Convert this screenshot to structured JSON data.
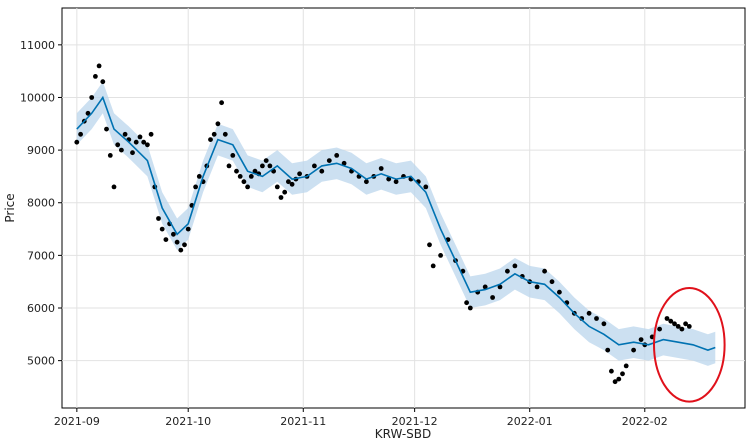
{
  "chart_data": {
    "type": "scatter",
    "xlabel": "KRW-SBD",
    "ylabel": "Price",
    "x_range": [
      "2021-08-28",
      "2022-02-28"
    ],
    "ylim": [
      4100,
      11700
    ],
    "x_ticks": [
      {
        "label": "2021-09",
        "date": "2021-09-01"
      },
      {
        "label": "2021-10",
        "date": "2021-10-01"
      },
      {
        "label": "2021-11",
        "date": "2021-11-01"
      },
      {
        "label": "2021-12",
        "date": "2021-12-01"
      },
      {
        "label": "2022-01",
        "date": "2022-01-01"
      },
      {
        "label": "2022-02",
        "date": "2022-02-01"
      }
    ],
    "y_ticks": [
      {
        "label": "5000",
        "value": 5000
      },
      {
        "label": "6000",
        "value": 6000
      },
      {
        "label": "7000",
        "value": 7000
      },
      {
        "label": "8000",
        "value": 8000
      },
      {
        "label": "9000",
        "value": 9000
      },
      {
        "label": "10000",
        "value": 10000
      },
      {
        "label": "11000",
        "value": 11000
      }
    ],
    "grid": true,
    "colors": {
      "observed": "#000000",
      "forecast": "#0072B2",
      "uncertainty": "#BBD6EC",
      "highlight_circle": "#E0111B"
    },
    "series": [
      {
        "role": "observed",
        "marker": "dot",
        "points": [
          [
            "2021-09-01",
            9150
          ],
          [
            "2021-09-02",
            9300
          ],
          [
            "2021-09-03",
            9550
          ],
          [
            "2021-09-04",
            9700
          ],
          [
            "2021-09-05",
            10000
          ],
          [
            "2021-09-06",
            10400
          ],
          [
            "2021-09-07",
            10600
          ],
          [
            "2021-09-08",
            10300
          ],
          [
            "2021-09-09",
            9400
          ],
          [
            "2021-09-10",
            8900
          ],
          [
            "2021-09-11",
            8300
          ],
          [
            "2021-09-12",
            9100
          ],
          [
            "2021-09-13",
            9000
          ],
          [
            "2021-09-14",
            9300
          ],
          [
            "2021-09-15",
            9200
          ],
          [
            "2021-09-16",
            8950
          ],
          [
            "2021-09-17",
            9150
          ],
          [
            "2021-09-18",
            9250
          ],
          [
            "2021-09-19",
            9150
          ],
          [
            "2021-09-20",
            9100
          ],
          [
            "2021-09-21",
            9300
          ],
          [
            "2021-09-22",
            8300
          ],
          [
            "2021-09-23",
            7700
          ],
          [
            "2021-09-24",
            7500
          ],
          [
            "2021-09-25",
            7300
          ],
          [
            "2021-09-26",
            7600
          ],
          [
            "2021-09-27",
            7400
          ],
          [
            "2021-09-28",
            7250
          ],
          [
            "2021-09-29",
            7100
          ],
          [
            "2021-09-30",
            7200
          ],
          [
            "2021-10-01",
            7500
          ],
          [
            "2021-10-02",
            7950
          ],
          [
            "2021-10-03",
            8300
          ],
          [
            "2021-10-04",
            8500
          ],
          [
            "2021-10-05",
            8400
          ],
          [
            "2021-10-06",
            8700
          ],
          [
            "2021-10-07",
            9200
          ],
          [
            "2021-10-08",
            9300
          ],
          [
            "2021-10-09",
            9500
          ],
          [
            "2021-10-10",
            9900
          ],
          [
            "2021-10-11",
            9300
          ],
          [
            "2021-10-12",
            8700
          ],
          [
            "2021-10-13",
            8900
          ],
          [
            "2021-10-14",
            8600
          ],
          [
            "2021-10-15",
            8500
          ],
          [
            "2021-10-16",
            8400
          ],
          [
            "2021-10-17",
            8300
          ],
          [
            "2021-10-18",
            8500
          ],
          [
            "2021-10-19",
            8600
          ],
          [
            "2021-10-20",
            8550
          ],
          [
            "2021-10-21",
            8700
          ],
          [
            "2021-10-22",
            8800
          ],
          [
            "2021-10-23",
            8700
          ],
          [
            "2021-10-24",
            8600
          ],
          [
            "2021-10-25",
            8300
          ],
          [
            "2021-10-26",
            8100
          ],
          [
            "2021-10-27",
            8200
          ],
          [
            "2021-10-28",
            8400
          ],
          [
            "2021-10-29",
            8350
          ],
          [
            "2021-10-30",
            8450
          ],
          [
            "2021-10-31",
            8550
          ],
          [
            "2021-11-02",
            8500
          ],
          [
            "2021-11-04",
            8700
          ],
          [
            "2021-11-06",
            8600
          ],
          [
            "2021-11-08",
            8800
          ],
          [
            "2021-11-10",
            8900
          ],
          [
            "2021-11-12",
            8750
          ],
          [
            "2021-11-14",
            8600
          ],
          [
            "2021-11-16",
            8500
          ],
          [
            "2021-11-18",
            8400
          ],
          [
            "2021-11-20",
            8500
          ],
          [
            "2021-11-22",
            8650
          ],
          [
            "2021-11-24",
            8450
          ],
          [
            "2021-11-26",
            8400
          ],
          [
            "2021-11-28",
            8500
          ],
          [
            "2021-11-30",
            8450
          ],
          [
            "2021-12-02",
            8400
          ],
          [
            "2021-12-04",
            8300
          ],
          [
            "2021-12-05",
            7200
          ],
          [
            "2021-12-06",
            6800
          ],
          [
            "2021-12-08",
            7000
          ],
          [
            "2021-12-10",
            7300
          ],
          [
            "2021-12-12",
            6900
          ],
          [
            "2021-12-14",
            6700
          ],
          [
            "2021-12-15",
            6100
          ],
          [
            "2021-12-16",
            6000
          ],
          [
            "2021-12-18",
            6300
          ],
          [
            "2021-12-20",
            6400
          ],
          [
            "2021-12-22",
            6200
          ],
          [
            "2021-12-24",
            6400
          ],
          [
            "2021-12-26",
            6700
          ],
          [
            "2021-12-28",
            6800
          ],
          [
            "2021-12-30",
            6600
          ],
          [
            "2022-01-01",
            6500
          ],
          [
            "2022-01-03",
            6400
          ],
          [
            "2022-01-05",
            6700
          ],
          [
            "2022-01-07",
            6500
          ],
          [
            "2022-01-09",
            6300
          ],
          [
            "2022-01-11",
            6100
          ],
          [
            "2022-01-13",
            5900
          ],
          [
            "2022-01-15",
            5800
          ],
          [
            "2022-01-17",
            5900
          ],
          [
            "2022-01-19",
            5800
          ],
          [
            "2022-01-21",
            5700
          ],
          [
            "2022-01-22",
            5200
          ],
          [
            "2022-01-23",
            4800
          ],
          [
            "2022-01-24",
            4600
          ],
          [
            "2022-01-25",
            4650
          ],
          [
            "2022-01-26",
            4750
          ],
          [
            "2022-01-27",
            4900
          ],
          [
            "2022-01-29",
            5200
          ],
          [
            "2022-01-31",
            5400
          ],
          [
            "2022-02-01",
            5300
          ],
          [
            "2022-02-03",
            5450
          ],
          [
            "2022-02-05",
            5600
          ],
          [
            "2022-02-07",
            5800
          ],
          [
            "2022-02-08",
            5750
          ],
          [
            "2022-02-09",
            5700
          ],
          [
            "2022-02-10",
            5650
          ],
          [
            "2022-02-11",
            5600
          ],
          [
            "2022-02-12",
            5700
          ],
          [
            "2022-02-13",
            5650
          ]
        ]
      },
      {
        "role": "forecast",
        "band_width": 600,
        "points": [
          [
            "2021-09-01",
            9400
          ],
          [
            "2021-09-05",
            9700
          ],
          [
            "2021-09-08",
            10000
          ],
          [
            "2021-09-11",
            9400
          ],
          [
            "2021-09-15",
            9150
          ],
          [
            "2021-09-20",
            8800
          ],
          [
            "2021-09-24",
            7900
          ],
          [
            "2021-09-28",
            7400
          ],
          [
            "2021-10-01",
            7600
          ],
          [
            "2021-10-05",
            8500
          ],
          [
            "2021-10-09",
            9200
          ],
          [
            "2021-10-13",
            9100
          ],
          [
            "2021-10-17",
            8600
          ],
          [
            "2021-10-21",
            8500
          ],
          [
            "2021-10-25",
            8700
          ],
          [
            "2021-10-29",
            8450
          ],
          [
            "2021-11-02",
            8500
          ],
          [
            "2021-11-06",
            8700
          ],
          [
            "2021-11-10",
            8750
          ],
          [
            "2021-11-14",
            8650
          ],
          [
            "2021-11-18",
            8450
          ],
          [
            "2021-11-22",
            8550
          ],
          [
            "2021-11-26",
            8450
          ],
          [
            "2021-11-30",
            8500
          ],
          [
            "2021-12-04",
            8200
          ],
          [
            "2021-12-08",
            7500
          ],
          [
            "2021-12-12",
            6900
          ],
          [
            "2021-12-16",
            6300
          ],
          [
            "2021-12-20",
            6350
          ],
          [
            "2021-12-24",
            6450
          ],
          [
            "2021-12-28",
            6650
          ],
          [
            "2022-01-01",
            6500
          ],
          [
            "2022-01-05",
            6450
          ],
          [
            "2022-01-09",
            6200
          ],
          [
            "2022-01-13",
            5900
          ],
          [
            "2022-01-17",
            5650
          ],
          [
            "2022-01-21",
            5500
          ],
          [
            "2022-01-25",
            5300
          ],
          [
            "2022-01-29",
            5350
          ],
          [
            "2022-02-02",
            5300
          ],
          [
            "2022-02-06",
            5400
          ],
          [
            "2022-02-10",
            5350
          ],
          [
            "2022-02-14",
            5300
          ],
          [
            "2022-02-18",
            5200
          ],
          [
            "2022-02-20",
            5250
          ]
        ]
      }
    ],
    "annotation": {
      "type": "circle",
      "center": [
        "2022-02-13",
        5300
      ],
      "radius_days": 9.5,
      "radius_value": 1080
    }
  }
}
